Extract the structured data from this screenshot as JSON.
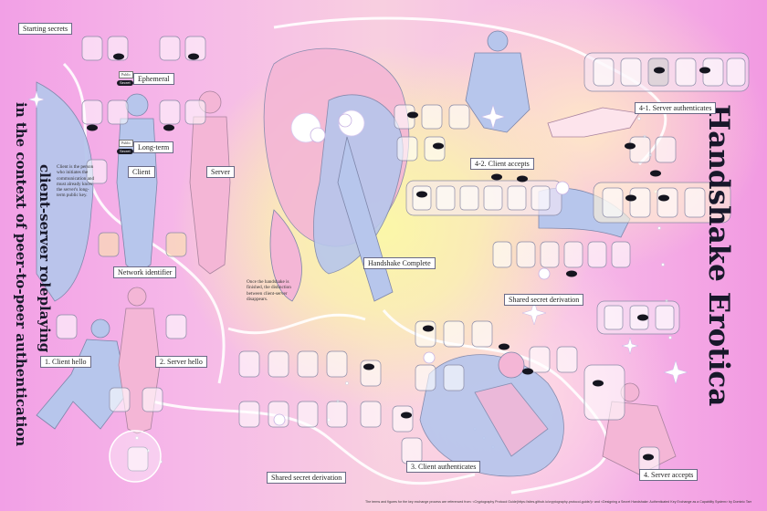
{
  "poster": {
    "title": "Handshake Erotica",
    "subtitle_line1": "client-server roleplaying",
    "subtitle_line2": "in the context of peer-to-peer authentication",
    "footer_credit": "The terms and figures for the key exchange process are referenced from: <Cryptography Protocol Guide(https://sites.github.io/cryptography-protocol-guide/)> and <Designing a Secret Handshake: Authenticated Key Exchange as a Capability System> by Dominic Tarr"
  },
  "labels": {
    "starting_secrets": "Starting secrets",
    "ephemeral": "Ephemeral",
    "long_term": "Long-term",
    "client": "Client",
    "server": "Server",
    "network_identifier": "Network identifier",
    "client_hello": "1. Client hello",
    "server_hello": "2. Server hello",
    "handshake_complete": "Handshake Complete",
    "shared_secret_derivation_top": "Shared secret derivation",
    "shared_secret_derivation_bottom": "Shared secret derivation",
    "client_authenticates": "3. Client authenticates",
    "client_accepts": "4-2. Client accepts",
    "server_authenticates": "4-1. Server authenticates",
    "server_accepts": "4. Server accepts",
    "public": "Public",
    "secret": "Secret"
  },
  "notes": {
    "client_definition": "Client is the person who initiates the communication and must already know the server's long-term public key.",
    "after_handshake": "Once the handshake is finished, the distinction between client-server disappears."
  },
  "colors": {
    "background_pink": "#f2a0e6",
    "center_yellow": "#fbf7a8",
    "figure_blue": "#b7c6ec",
    "figure_pink": "#f4b6d6",
    "ink": "#18182a"
  }
}
